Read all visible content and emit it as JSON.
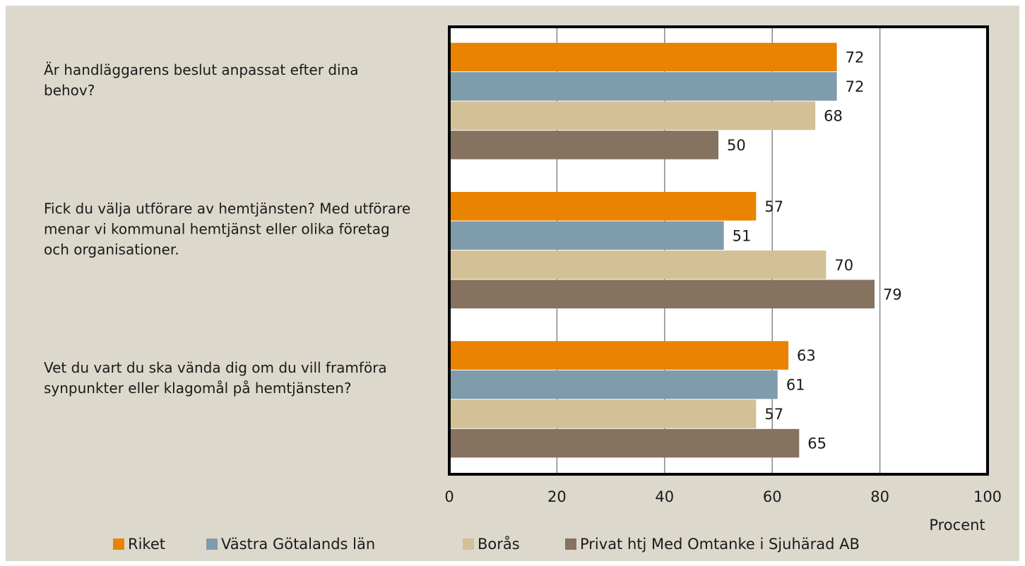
{
  "chart_data": {
    "type": "barh",
    "categories": [
      "Är handläggarens beslut anpassat efter dina behov?",
      "Fick du välja utförare av hemtjänsten? Med utförare menar vi kommunal hemtjänst eller olika företag och organisationer.",
      "Vet du vart du ska vända dig om du vill framföra synpunkter eller klagomål på hemtjänsten?"
    ],
    "series": [
      {
        "name": "Riket",
        "color": "#e98300",
        "values": [
          72,
          57,
          63
        ]
      },
      {
        "name": "Västra Götalands län",
        "color": "#7f9cad",
        "values": [
          72,
          51,
          61
        ]
      },
      {
        "name": "Borås",
        "color": "#d3c096",
        "values": [
          68,
          70,
          57
        ]
      },
      {
        "name": "Privat htj Med Omtanke i Sjuhärad AB",
        "color": "#85735f",
        "values": [
          50,
          79,
          65
        ]
      }
    ],
    "xlabel": "Procent",
    "xlim": [
      0,
      100
    ],
    "xticks": [
      0,
      20,
      40,
      60,
      80,
      100
    ],
    "grid": true,
    "legend": "bottom"
  }
}
